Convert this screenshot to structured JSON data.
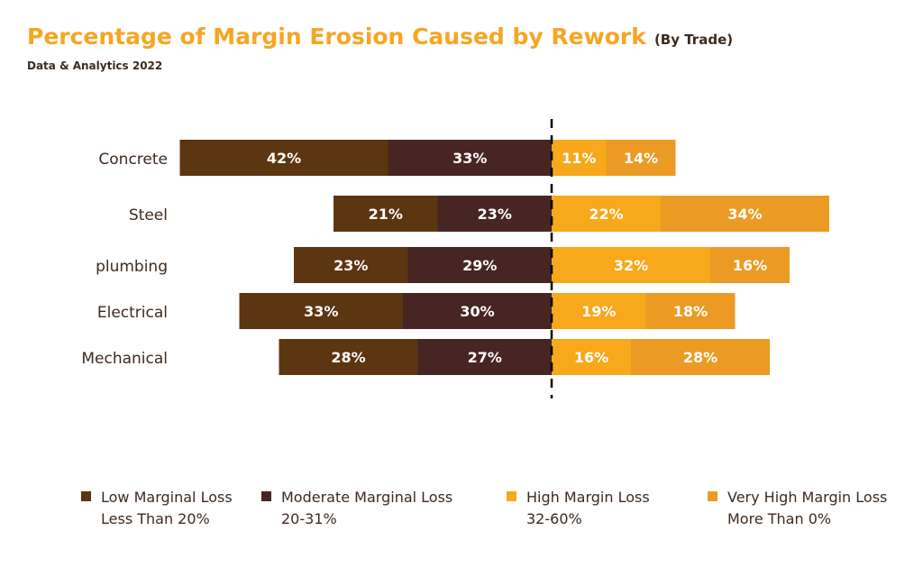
{
  "header": {
    "title": "Percentage of Margin Erosion Caused by Rework",
    "subtitle": "(By Trade)",
    "source": "Data & Analytics 2022"
  },
  "chart_data": {
    "type": "bar",
    "orientation": "horizontal-diverging",
    "categories": [
      "Concrete",
      "Steel",
      "plumbing",
      "Electrical",
      "Mechanical"
    ],
    "series": [
      {
        "name": "Low Marginal Loss Less Than 20%",
        "side": "left",
        "color": "#5c3511",
        "values": [
          42,
          21,
          23,
          33,
          28
        ]
      },
      {
        "name": "Moderate Marginal Loss 20-31%",
        "side": "left",
        "color": "#472523",
        "values": [
          33,
          23,
          29,
          30,
          27
        ]
      },
      {
        "name": "High Margin Loss 32-60%",
        "side": "right",
        "color": "#f7a81b",
        "values": [
          11,
          22,
          32,
          19,
          16
        ]
      },
      {
        "name": "Very High Margin Loss More Than 0%",
        "side": "right",
        "color": "#eb9b24",
        "values": [
          14,
          34,
          16,
          18,
          28
        ]
      }
    ],
    "data_labels": [
      [
        "42%",
        "21%",
        "23%",
        "33%",
        "28%"
      ],
      [
        "33%",
        "23%",
        "29%",
        "30%",
        "27%"
      ],
      [
        "11%",
        "22%",
        "32%",
        "19%",
        "16%"
      ],
      [
        "14%",
        "34%",
        "16%",
        "18%",
        "28%"
      ]
    ],
    "center_line": "dashed",
    "grid": false,
    "legend_position": "bottom"
  },
  "legend": [
    {
      "line1": "Low Marginal Loss",
      "line2": "Less Than 20%",
      "color": "#5c3511"
    },
    {
      "line1": "Moderate Marginal Loss",
      "line2": "20-31%",
      "color": "#472523"
    },
    {
      "line1": "High Margin Loss",
      "line2": "32-60%",
      "color": "#f7a81b"
    },
    {
      "line1": "Very High Margin Loss",
      "line2": "More Than 0%",
      "color": "#eb9b24"
    }
  ]
}
